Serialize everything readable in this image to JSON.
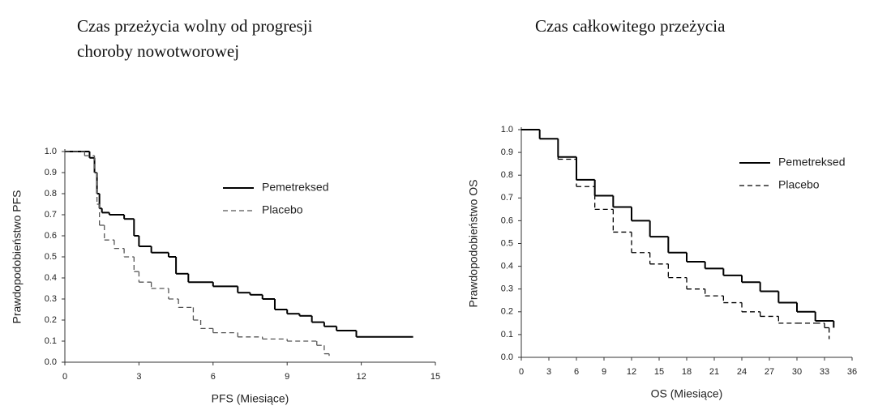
{
  "chart_data": [
    {
      "type": "step",
      "title": [
        "Czas przeżycia wolny od progresji",
        "choroby nowotworowej"
      ],
      "x_label": "PFS (Miesiące)",
      "y_label": "Prawdopodobieństwo PFS",
      "xlim": [
        0,
        15
      ],
      "xticks": [
        0,
        3,
        6,
        9,
        12,
        15
      ],
      "ylim": [
        0,
        1
      ],
      "yticks": [
        {
          "value": 0,
          "label": "0.0"
        },
        0.1,
        0.2,
        0.3,
        0.4,
        0.5,
        0.6,
        0.7,
        0.8,
        0.9,
        {
          "value": 1,
          "label": "1.0"
        }
      ],
      "legend": "upper right",
      "series": [
        {
          "name": "Pemetreksed",
          "color": "#000000",
          "line_style": "solid",
          "x": [
            0,
            0.5,
            1,
            1.2,
            1.3,
            1.4,
            1.5,
            1.8,
            2.4,
            2.8,
            3.0,
            3.5,
            4.2,
            4.5,
            5.0,
            6.0,
            7.0,
            7.5,
            8.0,
            8.5,
            9.0,
            9.5,
            10.0,
            10.5,
            11.0,
            11.8,
            14.1
          ],
          "values": [
            1.0,
            1.0,
            0.97,
            0.9,
            0.8,
            0.73,
            0.71,
            0.7,
            0.68,
            0.6,
            0.55,
            0.52,
            0.5,
            0.42,
            0.38,
            0.36,
            0.33,
            0.32,
            0.3,
            0.25,
            0.23,
            0.22,
            0.19,
            0.17,
            0.15,
            0.12,
            0.12
          ]
        },
        {
          "name": "Placebo",
          "color": "#555555",
          "line_style": "dashed",
          "x": [
            0,
            0.8,
            1.2,
            1.3,
            1.4,
            1.6,
            2.0,
            2.4,
            2.8,
            3.0,
            3.5,
            4.2,
            4.6,
            5.2,
            5.5,
            6.0,
            7.0,
            8.0,
            9.0,
            10.2,
            10.5,
            10.7
          ],
          "values": [
            1.0,
            0.98,
            0.9,
            0.75,
            0.65,
            0.58,
            0.54,
            0.5,
            0.43,
            0.38,
            0.35,
            0.3,
            0.26,
            0.2,
            0.16,
            0.14,
            0.12,
            0.11,
            0.1,
            0.08,
            0.04,
            0.03
          ]
        }
      ]
    },
    {
      "type": "step",
      "title": [
        "Czas całkowitego przeżycia"
      ],
      "x_label": "OS (Miesiące)",
      "y_label": "Prawdopodobieństwo OS",
      "xlim": [
        0,
        36
      ],
      "xticks": [
        0,
        3,
        6,
        9,
        12,
        15,
        18,
        21,
        24,
        27,
        30,
        33,
        36
      ],
      "ylim": [
        0,
        1
      ],
      "yticks": [
        {
          "value": 0,
          "label": "0.0"
        },
        0.1,
        0.2,
        0.3,
        0.4,
        0.5,
        0.6,
        0.7,
        0.8,
        0.9,
        {
          "value": 1,
          "label": "1.0"
        }
      ],
      "legend": "upper right",
      "series": [
        {
          "name": "Pemetreksed",
          "color": "#000000",
          "line_style": "solid",
          "x": [
            0,
            2,
            4,
            6,
            8,
            10,
            12,
            14,
            16,
            18,
            20,
            22,
            24,
            26,
            28,
            30,
            32,
            34
          ],
          "values": [
            1.0,
            0.96,
            0.88,
            0.78,
            0.71,
            0.66,
            0.6,
            0.53,
            0.46,
            0.42,
            0.39,
            0.36,
            0.33,
            0.29,
            0.24,
            0.2,
            0.16,
            0.13
          ]
        },
        {
          "name": "Placebo",
          "color": "#000000",
          "line_style": "dashed",
          "x": [
            0,
            2,
            4,
            6,
            8,
            10,
            12,
            14,
            16,
            18,
            20,
            22,
            24,
            26,
            28,
            30,
            32,
            33,
            33.5
          ],
          "values": [
            1.0,
            0.96,
            0.87,
            0.75,
            0.65,
            0.55,
            0.46,
            0.41,
            0.35,
            0.3,
            0.27,
            0.24,
            0.2,
            0.18,
            0.15,
            0.15,
            0.15,
            0.13,
            0.08
          ]
        }
      ]
    }
  ]
}
